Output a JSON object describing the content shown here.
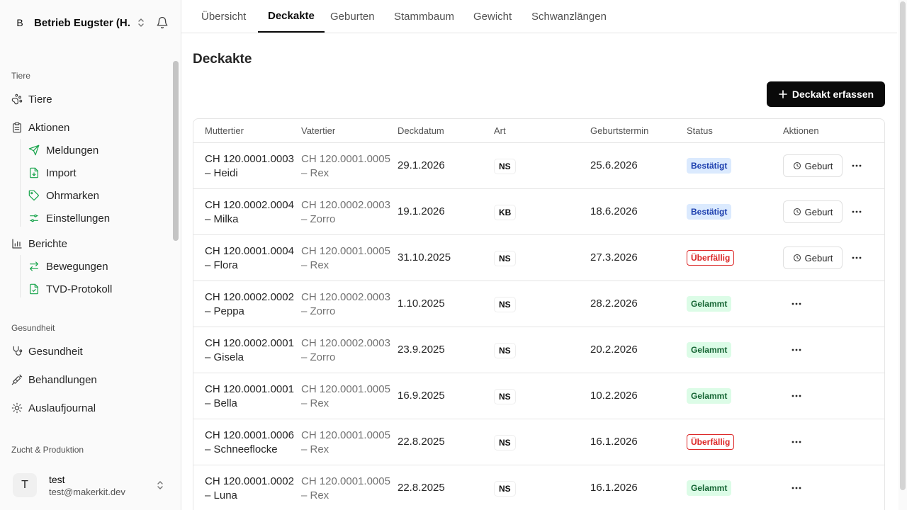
{
  "sidebar": {
    "org": {
      "initial": "B",
      "name": "Betrieb Eugster (H..."
    },
    "groups": {
      "tiere": "Tiere",
      "gesundheit": "Gesundheit",
      "zucht": "Zucht & Produktion"
    },
    "items": {
      "tiere": "Tiere",
      "aktionen": "Aktionen",
      "meldungen": "Meldungen",
      "import": "Import",
      "ohrmarken": "Ohrmarken",
      "einstellungen": "Einstellungen",
      "berichte": "Berichte",
      "bewegungen": "Bewegungen",
      "tvd": "TVD-Protokoll",
      "gesundheit": "Gesundheit",
      "behandlungen": "Behandlungen",
      "auslaufjournal": "Auslaufjournal"
    },
    "user": {
      "initial": "T",
      "name": "test",
      "email": "test@makerkit.dev"
    }
  },
  "tabs": [
    "Übersicht",
    "Deckakte",
    "Geburten",
    "Stammbaum",
    "Gewicht",
    "Schwanzlängen"
  ],
  "active_tab": "Deckakte",
  "page": {
    "title": "Deckakte",
    "add_button": "Deckakt erfassen"
  },
  "table": {
    "headers": [
      "Muttertier",
      "Vatertier",
      "Deckdatum",
      "Art",
      "Geburtstermin",
      "Status",
      "Aktionen"
    ],
    "action_label": "Geburt",
    "rows": [
      {
        "mother_id": "CH 120.0001.0003",
        "mother_name": "– Heidi",
        "father_id": "CH 120.0001.0005",
        "father_name": "– Rex",
        "date": "29.1.2026",
        "art": "NS",
        "due": "25.6.2026",
        "status": "Bestätigt",
        "status_type": "blue",
        "action": true
      },
      {
        "mother_id": "CH 120.0002.0004",
        "mother_name": "– Milka",
        "father_id": "CH 120.0002.0003",
        "father_name": "– Zorro",
        "date": "19.1.2026",
        "art": "KB",
        "due": "18.6.2026",
        "status": "Bestätigt",
        "status_type": "blue",
        "action": true
      },
      {
        "mother_id": "CH 120.0001.0004",
        "mother_name": "– Flora",
        "father_id": "CH 120.0001.0005",
        "father_name": "– Rex",
        "date": "31.10.2025",
        "art": "NS",
        "due": "27.3.2026",
        "status": "Überfällig",
        "status_type": "red",
        "action": true
      },
      {
        "mother_id": "CH 120.0002.0002",
        "mother_name": "– Peppa",
        "father_id": "CH 120.0002.0003",
        "father_name": "– Zorro",
        "date": "1.10.2025",
        "art": "NS",
        "due": "28.2.2026",
        "status": "Gelammt",
        "status_type": "green",
        "action": false
      },
      {
        "mother_id": "CH 120.0002.0001",
        "mother_name": "– Gisela",
        "father_id": "CH 120.0002.0003",
        "father_name": "– Zorro",
        "date": "23.9.2025",
        "art": "NS",
        "due": "20.2.2026",
        "status": "Gelammt",
        "status_type": "green",
        "action": false
      },
      {
        "mother_id": "CH 120.0001.0001",
        "mother_name": "– Bella",
        "father_id": "CH 120.0001.0005",
        "father_name": "– Rex",
        "date": "16.9.2025",
        "art": "NS",
        "due": "10.2.2026",
        "status": "Gelammt",
        "status_type": "green",
        "action": false
      },
      {
        "mother_id": "CH 120.0001.0006",
        "mother_name": "– Schneeflocke",
        "father_id": "CH 120.0001.0005",
        "father_name": "– Rex",
        "date": "22.8.2025",
        "art": "NS",
        "due": "16.1.2026",
        "status": "Überfällig",
        "status_type": "red",
        "action": false
      },
      {
        "mother_id": "CH 120.0001.0002",
        "mother_name": "– Luna",
        "father_id": "CH 120.0001.0005",
        "father_name": "– Rex",
        "date": "22.8.2025",
        "art": "NS",
        "due": "16.1.2026",
        "status": "Gelammt",
        "status_type": "green",
        "action": false
      }
    ]
  },
  "colors": {
    "accent": "#0a0a0a",
    "status_blue": "#1e40af",
    "status_green": "#166534",
    "status_red": "#dc2626"
  }
}
